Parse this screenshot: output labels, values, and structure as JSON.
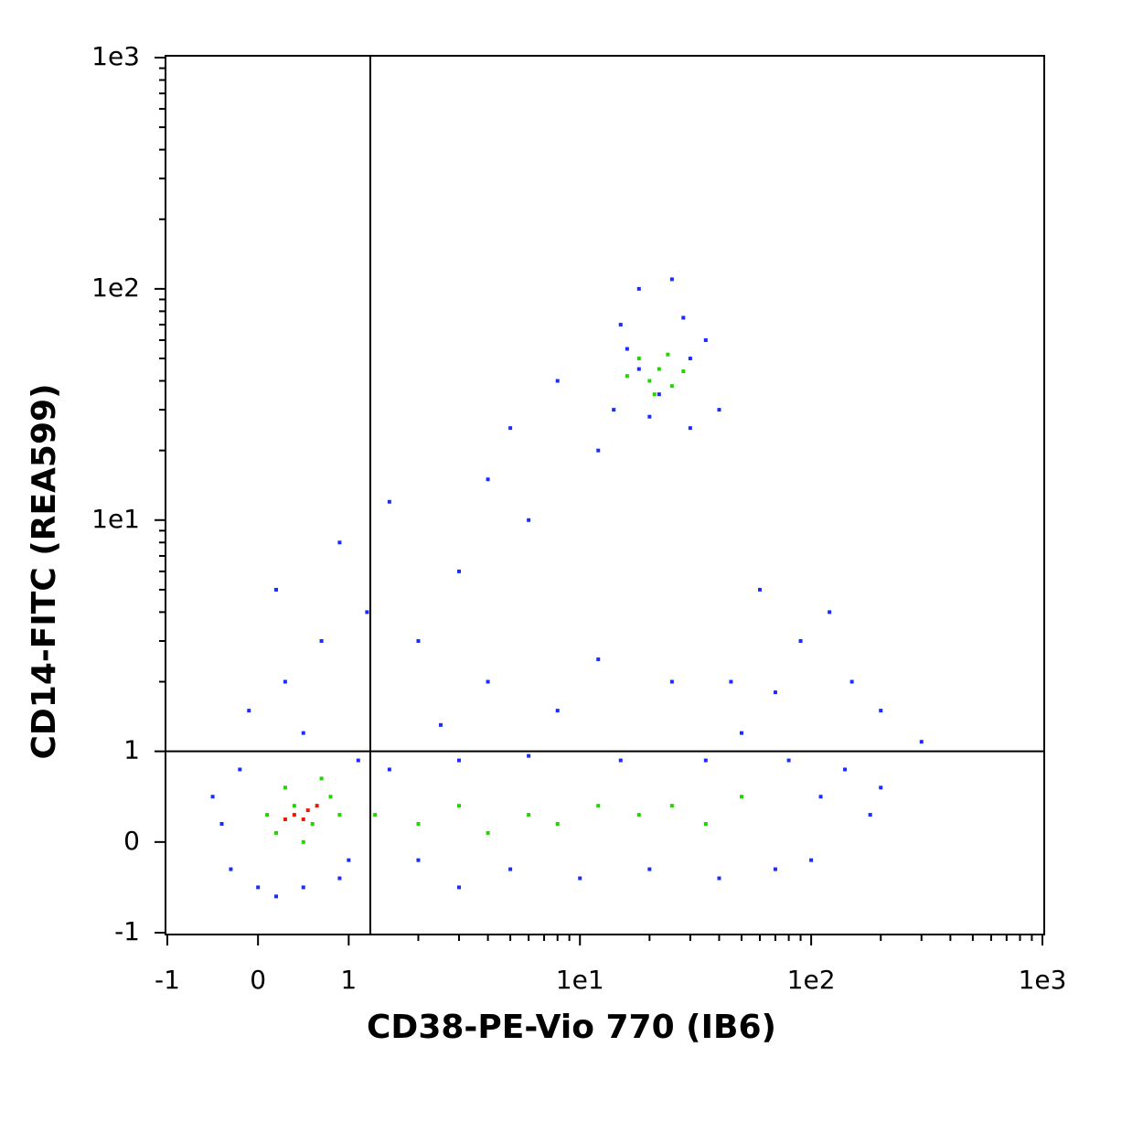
{
  "chart_data": {
    "type": "scatter",
    "xlabel": "CD38-PE-Vio 770 (IB6)",
    "ylabel": "CD14-FITC (REA599)",
    "xscale": "biexponential",
    "yscale": "biexponential",
    "xlim": [
      -1,
      1000
    ],
    "ylim": [
      -1,
      1000
    ],
    "xticks": [
      -1,
      0,
      1,
      {
        "value": 10,
        "label": "1e1"
      },
      {
        "value": 100,
        "label": "1e2"
      },
      {
        "value": 1000,
        "label": "1e3"
      }
    ],
    "yticks": [
      -1,
      0,
      1,
      {
        "value": 10,
        "label": "1e1"
      },
      {
        "value": 100,
        "label": "1e2"
      },
      {
        "value": 1000,
        "label": "1e3"
      }
    ],
    "xminorticks": [
      2,
      3,
      4,
      5,
      6,
      7,
      8,
      9,
      20,
      30,
      40,
      50,
      60,
      70,
      80,
      90,
      200,
      300,
      400,
      500,
      600,
      700,
      800,
      900
    ],
    "yminorticks": [
      2,
      3,
      4,
      5,
      6,
      7,
      8,
      9,
      20,
      30,
      40,
      50,
      60,
      70,
      80,
      90,
      200,
      300,
      400,
      500,
      600,
      700,
      800,
      900
    ],
    "gates": {
      "x": 1.24,
      "y": 1
    },
    "series": [
      {
        "color": "#1a2cff",
        "x": [
          -0.4,
          -0.3,
          -0.2,
          0,
          0.2,
          0.5,
          0.9,
          1.1,
          -0.1,
          0.3,
          0.7,
          0.2,
          1.2,
          0.9,
          1.5,
          2,
          3,
          4,
          5,
          8,
          6,
          12,
          15,
          18,
          25,
          35,
          40,
          30,
          14,
          16,
          28,
          20,
          45,
          60,
          90,
          120,
          150,
          200,
          300,
          180,
          140,
          100,
          70,
          40,
          20,
          10,
          5,
          3,
          2,
          1.5,
          3,
          8,
          12,
          25,
          50,
          70,
          110,
          200,
          6,
          15,
          35,
          80,
          4,
          2.5,
          0.5,
          -0.5,
          1.0,
          30,
          22,
          18
        ],
        "values": [
          0.2,
          -0.3,
          0.8,
          -0.5,
          -0.6,
          -0.5,
          -0.4,
          0.9,
          1.5,
          2,
          3,
          5,
          4,
          8,
          12,
          3,
          6,
          15,
          25,
          40,
          10,
          20,
          70,
          100,
          110,
          60,
          30,
          25,
          30,
          55,
          75,
          28,
          2,
          5,
          3,
          4,
          2,
          1.5,
          1.1,
          0.3,
          0.8,
          -0.2,
          -0.3,
          -0.4,
          -0.3,
          -0.4,
          -0.3,
          -0.5,
          -0.2,
          0.8,
          0.9,
          1.5,
          2.5,
          2,
          1.2,
          1.8,
          0.5,
          0.6,
          0.95,
          0.9,
          0.9,
          0.9,
          2,
          1.3,
          1.2,
          0.5,
          -0.2,
          50,
          35,
          45
        ]
      },
      {
        "color": "#22d400",
        "x": [
          0.2,
          0.4,
          0.6,
          0.8,
          0.3,
          0.5,
          0.9,
          0.1,
          0.7,
          1.3,
          2,
          3,
          4,
          6,
          8,
          12,
          18,
          25,
          35,
          50,
          20,
          22,
          25,
          18,
          24,
          21,
          16,
          28
        ],
        "values": [
          0.1,
          0.4,
          0.2,
          0.5,
          0.6,
          0.0,
          0.3,
          0.3,
          0.7,
          0.3,
          0.2,
          0.4,
          0.1,
          0.3,
          0.2,
          0.4,
          0.3,
          0.4,
          0.2,
          0.5,
          40,
          45,
          38,
          50,
          52,
          35,
          42,
          44
        ]
      },
      {
        "color": "#e81a00",
        "x": [
          0.4,
          0.55,
          0.5,
          0.65,
          0.3
        ],
        "values": [
          0.3,
          0.35,
          0.25,
          0.4,
          0.25
        ]
      }
    ]
  }
}
